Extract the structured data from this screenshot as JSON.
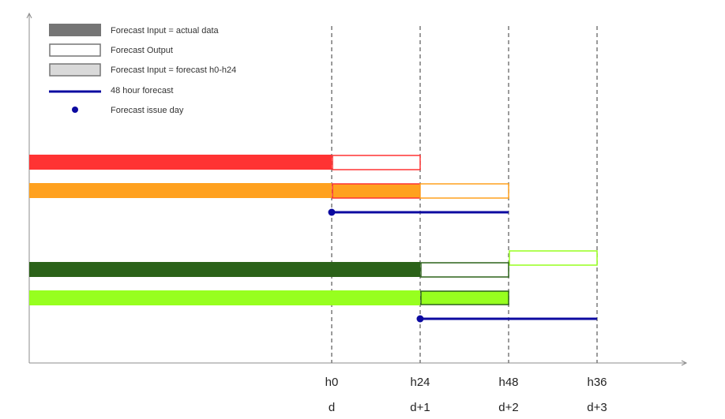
{
  "legend": [
    {
      "label": "Forecast Input = actual data",
      "symbol": "filled-bar",
      "color": "#757575"
    },
    {
      "label": "Forecast Output",
      "symbol": "outline-bar",
      "color": "#757575"
    },
    {
      "label": "Forecast Input = forecast h0-h24",
      "symbol": "outlined-filled-bar",
      "color": "#d9d9d9",
      "stroke": "#757575"
    },
    {
      "label": "48 hour forecast",
      "symbol": "line",
      "color": "#0c0aa0"
    },
    {
      "label": "Forecast issue day",
      "symbol": "dot",
      "color": "#0c0aa0"
    }
  ],
  "x_ticks": [
    {
      "hour_label": "h0",
      "day_label": "d"
    },
    {
      "hour_label": "h24",
      "day_label": "d+1"
    },
    {
      "hour_label": "h48",
      "day_label": "d+2"
    },
    {
      "hour_label": "h36",
      "day_label": "d+3"
    }
  ],
  "colors": {
    "red": "#ff3333",
    "orange": "#ffa11f",
    "dark_green": "#2b6219",
    "lime": "#97ff1f",
    "navy": "#0c0aa0",
    "axis": "#8c8c8c",
    "guide": "#7a7a7a"
  }
}
